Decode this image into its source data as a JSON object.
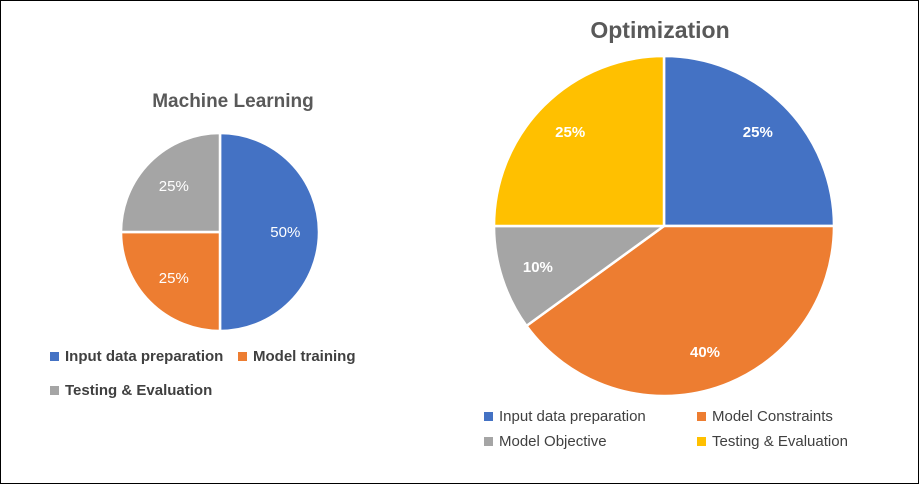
{
  "chart_data": [
    {
      "type": "pie",
      "title": "Machine Learning",
      "legend_position": "bottom",
      "slices": [
        {
          "label": "Input data preparation",
          "value": 50,
          "display": "50%",
          "color": "#4472C4"
        },
        {
          "label": "Model training",
          "value": 25,
          "display": "25%",
          "color": "#ED7D31"
        },
        {
          "label": "Testing & Evaluation",
          "value": 25,
          "display": "25%",
          "color": "#A5A5A5"
        }
      ]
    },
    {
      "type": "pie",
      "title": "Optimization",
      "legend_position": "bottom",
      "slices": [
        {
          "label": "Input data preparation",
          "value": 25,
          "display": "25%",
          "color": "#4472C4"
        },
        {
          "label": "Model Constraints",
          "value": 40,
          "display": "40%",
          "color": "#ED7D31"
        },
        {
          "label": "Model Objective",
          "value": 10,
          "display": "10%",
          "color": "#A5A5A5"
        },
        {
          "label": "Testing & Evaluation",
          "value": 25,
          "display": "25%",
          "color": "#FFC000"
        }
      ]
    }
  ]
}
